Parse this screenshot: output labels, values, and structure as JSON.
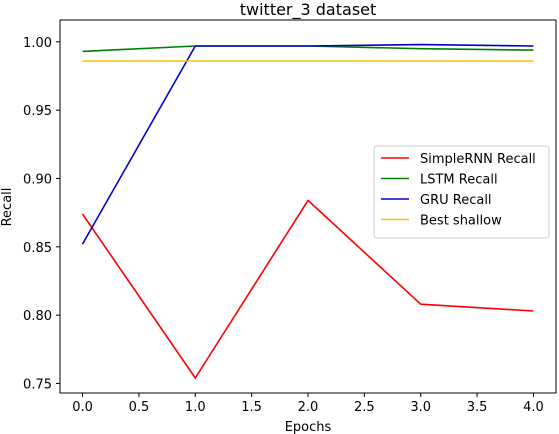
{
  "chart_data": {
    "type": "line",
    "title": "twitter_3 dataset",
    "xlabel": "Epochs",
    "ylabel": "Recall",
    "x": [
      0,
      1,
      2,
      3,
      4
    ],
    "xlim": [
      -0.2,
      4.2
    ],
    "ylim": [
      0.743,
      1.016
    ],
    "xticks": [
      0.0,
      0.5,
      1.0,
      1.5,
      2.0,
      2.5,
      3.0,
      3.5,
      4.0
    ],
    "xtick_labels": [
      "0.0",
      "0.5",
      "1.0",
      "1.5",
      "2.0",
      "2.5",
      "3.0",
      "3.5",
      "4.0"
    ],
    "yticks": [
      0.75,
      0.8,
      0.85,
      0.9,
      0.95,
      1.0
    ],
    "ytick_labels": [
      "0.75",
      "0.80",
      "0.85",
      "0.90",
      "0.95",
      "1.00"
    ],
    "grid": false,
    "legend_position": "center-right",
    "series": [
      {
        "name": "SimpleRNN Recall",
        "color": "#ff0000",
        "values": [
          0.874,
          0.754,
          0.884,
          0.808,
          0.803
        ]
      },
      {
        "name": "LSTM Recall",
        "color": "#008000",
        "values": [
          0.993,
          0.997,
          0.997,
          0.995,
          0.994
        ]
      },
      {
        "name": "GRU Recall",
        "color": "#0000cc",
        "values": [
          0.852,
          0.997,
          0.997,
          0.998,
          0.997
        ]
      },
      {
        "name": "Best shallow",
        "color": "#ffc000",
        "values": [
          0.986,
          0.986,
          0.986,
          0.986,
          0.986
        ]
      }
    ]
  }
}
